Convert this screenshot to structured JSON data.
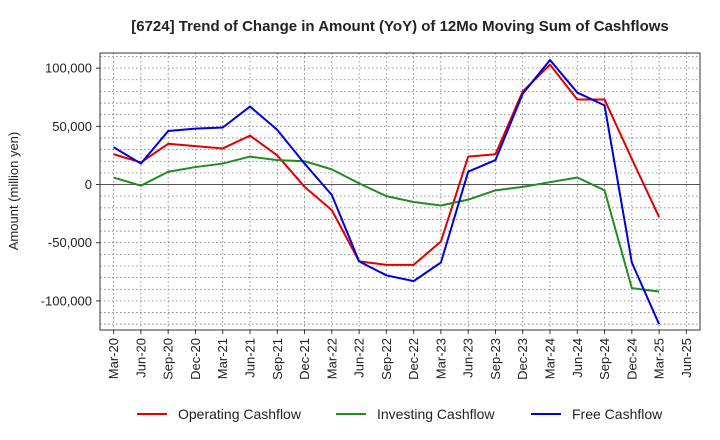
{
  "chart_data": {
    "type": "line",
    "title": "[6724]  Trend of Change in Amount (YoY) of 12Mo Moving Sum of Cashflows",
    "xlabel": "",
    "ylabel": "Amount (million yen)",
    "categories": [
      "Mar-20",
      "Jun-20",
      "Sep-20",
      "Dec-20",
      "Mar-21",
      "Jun-21",
      "Sep-21",
      "Dec-21",
      "Mar-22",
      "Jun-22",
      "Sep-22",
      "Dec-22",
      "Mar-23",
      "Jun-23",
      "Sep-23",
      "Dec-23",
      "Mar-24",
      "Jun-24",
      "Sep-24",
      "Dec-24",
      "Mar-25",
      "Jun-25"
    ],
    "ylim": [
      -125000,
      113000
    ],
    "yticks": [
      100000,
      50000,
      0,
      -50000,
      -100000
    ],
    "ytick_labels": [
      "100,000",
      "50,000",
      "0",
      "-50,000",
      "-100,000"
    ],
    "grid": true,
    "legend_position": "bottom",
    "series": [
      {
        "name": "Operating Cashflow",
        "color": "#e00000",
        "values": [
          26000,
          19000,
          35000,
          33000,
          31000,
          42000,
          25000,
          -2000,
          -22000,
          -66000,
          -69000,
          -69000,
          -49000,
          24000,
          26000,
          80000,
          103000,
          73000,
          73000,
          22000,
          -28000,
          null
        ]
      },
      {
        "name": "Investing Cashflow",
        "color": "#228b22",
        "values": [
          6000,
          -1000,
          11000,
          15000,
          18000,
          24000,
          21000,
          20000,
          13000,
          1000,
          -10000,
          -15000,
          -18000,
          -13000,
          -5000,
          -2000,
          2000,
          6000,
          -5000,
          -89000,
          -92000,
          null
        ]
      },
      {
        "name": "Free Cashflow",
        "color": "#0000dd",
        "values": [
          32000,
          18000,
          46000,
          48000,
          49000,
          67000,
          47000,
          18000,
          -9000,
          -66000,
          -78000,
          -83000,
          -67000,
          11000,
          21000,
          78000,
          107000,
          79000,
          68000,
          -67000,
          -120000,
          null
        ]
      }
    ]
  }
}
